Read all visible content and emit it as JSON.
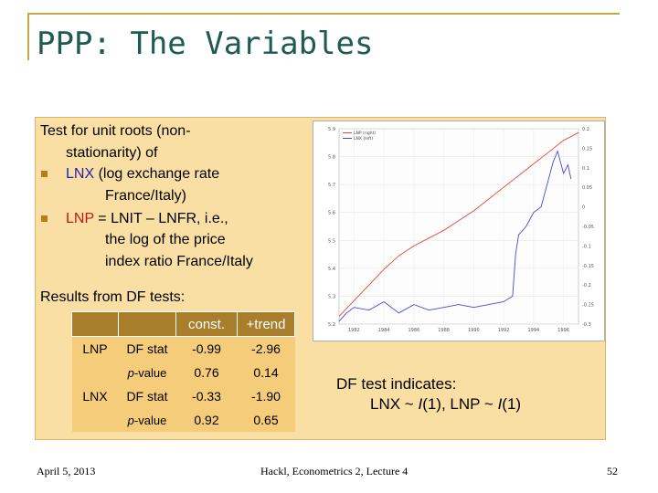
{
  "slide": {
    "title": "PPP: The Variables",
    "intro_line1": "Test for unit roots (non-",
    "intro_line2": "stationarity) of",
    "b1_name": "LNX",
    "b1_text1": " (log exchange rate",
    "b1_text2": "France/Italy)",
    "b2_name": "LNP",
    "b2_text1": " = LNIT – LNFR, i.e.,",
    "b2_text2": "the log of the price",
    "b2_text3": "index ratio France/Italy",
    "results_label": "Results from DF tests:",
    "conclusion_line1": "DF test indicates:",
    "conclusion_line2": "LNX ~ I(1), LNP ~ I(1)",
    "footer_date": "April 5, 2013",
    "footer_course": "Hackl, Econometrics 2, Lecture 4",
    "page_number": "52"
  },
  "df_table": {
    "header": [
      "",
      "",
      "const.",
      "+trend"
    ],
    "rows": [
      [
        "LNP",
        "DF stat",
        "-0.99",
        "-2.96"
      ],
      [
        "",
        "p-value",
        "0.76",
        "0.14"
      ],
      [
        "LNX",
        "DF stat",
        "-0.33",
        "-1.90"
      ],
      [
        "",
        "p-value",
        "0.92",
        "0.65"
      ]
    ]
  },
  "chart_data": {
    "type": "line",
    "legend": [
      "LNP (right)",
      "LNX (left)"
    ],
    "legend_position": "top-left",
    "left_axis_ticks": [
      "5.9",
      "5.8",
      "5.7",
      "5.6",
      "5.5",
      "5.4",
      "5.3",
      "5.2"
    ],
    "right_axis_ticks": [
      "0.2",
      "0.15",
      "0.1",
      "0.05",
      "0",
      "-0.05",
      "-0.1",
      "-0.15",
      "-0.2",
      "-0.25",
      "-0.3"
    ],
    "x_ticks": [
      "1982",
      "1984",
      "1986",
      "1988",
      "1990",
      "1992",
      "1994",
      "1996"
    ],
    "grid": true,
    "series": [
      {
        "name": "LNP (right)",
        "axis": "right",
        "color": "#e04a3a",
        "x": [
          1981,
          1982,
          1983,
          1984,
          1985,
          1986,
          1987,
          1988,
          1989,
          1990,
          1991,
          1992,
          1993,
          1994,
          1995,
          1996,
          1997
        ],
        "y": [
          -0.28,
          -0.24,
          -0.2,
          -0.16,
          -0.125,
          -0.1,
          -0.08,
          -0.06,
          -0.035,
          -0.01,
          0.02,
          0.05,
          0.08,
          0.11,
          0.14,
          0.17,
          0.19
        ]
      },
      {
        "name": "LNX (left)",
        "axis": "left",
        "color": "#4848d8",
        "x": [
          1981,
          1981.5,
          1982,
          1983,
          1984,
          1985,
          1986,
          1987,
          1988,
          1989,
          1990,
          1991,
          1992,
          1992.6,
          1992.8,
          1993,
          1993.5,
          1994,
          1994.5,
          1995,
          1995.3,
          1995.6,
          1996,
          1996.3,
          1996.5
        ],
        "y": [
          5.21,
          5.24,
          5.26,
          5.25,
          5.28,
          5.24,
          5.27,
          5.25,
          5.26,
          5.27,
          5.26,
          5.27,
          5.28,
          5.3,
          5.45,
          5.52,
          5.55,
          5.6,
          5.62,
          5.72,
          5.78,
          5.82,
          5.74,
          5.77,
          5.72
        ]
      }
    ]
  }
}
